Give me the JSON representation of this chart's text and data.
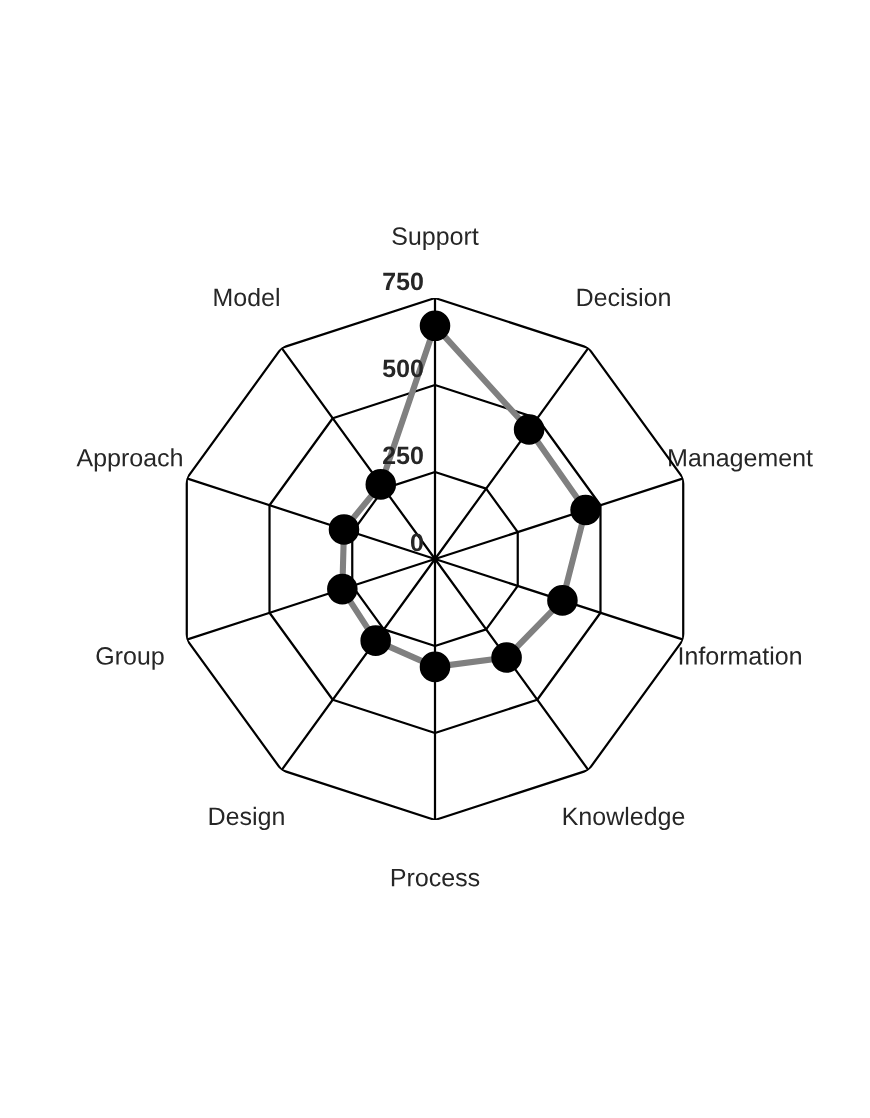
{
  "chart_data": {
    "type": "radar",
    "categories": [
      "Support",
      "Decision",
      "Management",
      "Information",
      "Knowledge",
      "Process",
      "Design",
      "Group",
      "Approach",
      "Model"
    ],
    "series": [
      {
        "color": "#808080",
        "values": [
          670,
          460,
          455,
          385,
          350,
          310,
          290,
          280,
          275,
          265
        ]
      }
    ],
    "ylim": [
      0,
      750
    ],
    "yticks": [
      0,
      250,
      500,
      750
    ],
    "grid": true,
    "marker": "circle",
    "line_style": "solid"
  }
}
